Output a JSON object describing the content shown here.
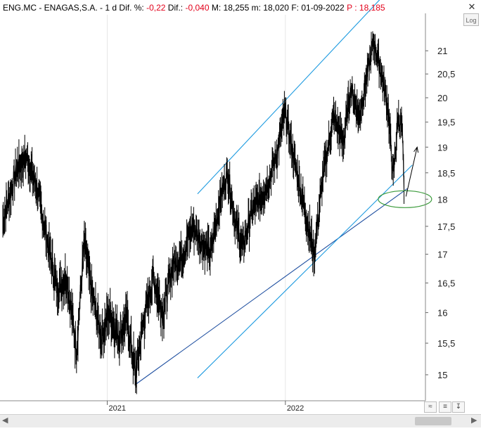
{
  "header": {
    "ticker": "ENG.MC - ENAGAS,S.A. -",
    "period": "1 d",
    "dif_pct_label": "Dif. %:",
    "dif_pct_value": "-0,22",
    "dif_label": "Dif.:",
    "dif_value": "-0,040",
    "max_label": "M:",
    "max_value": "18,255",
    "min_label": "m:",
    "min_value": "18,020",
    "date_label": "F:",
    "date_value": "01-09-2022",
    "price_label": "P :",
    "price_value": "18,185",
    "close_icon": "close-icon"
  },
  "controls": {
    "log_label": "Log",
    "scroll_left": "◀",
    "scroll_right": "▶",
    "btn_zoom_icon": "zigzag-icon",
    "btn_a": "≡",
    "btn_b": "↧"
  },
  "colors": {
    "price": "#000000",
    "trendline": "#1e9be0",
    "trendline_dark": "#1f4fa0",
    "ellipse": "#3a9a3a",
    "arrow": "#000000",
    "grid": "#e6e6e6",
    "negative": "#e2001a"
  },
  "chart_data": {
    "type": "line",
    "style": "bar-ohlc",
    "title": "",
    "xlabel": "",
    "ylabel": "",
    "x_tick_labels": [
      "2021",
      "2022"
    ],
    "y_ticks": [
      15,
      15.5,
      16,
      16.5,
      17,
      17.5,
      18,
      18.5,
      19,
      19.5,
      20,
      20.5,
      21
    ],
    "y_tick_labels": [
      "15",
      "15,5",
      "16",
      "16,5",
      "17",
      "17,5",
      "18",
      "18,5",
      "19",
      "19,5",
      "20",
      "20,5",
      "21"
    ],
    "ylim": [
      14.6,
      21.8
    ],
    "x_range": [
      "2020-06-01",
      "2022-10-15"
    ],
    "scale": "log",
    "grid": true,
    "series": [
      {
        "values_monthly": [
          [
            "2020-06-01",
            17.6
          ],
          [
            "2020-07-01",
            18.6
          ],
          [
            "2020-07-20",
            18.8
          ],
          [
            "2020-08-10",
            18.2
          ],
          [
            "2020-09-01",
            17.2
          ],
          [
            "2020-09-20",
            16.4
          ],
          [
            "2020-10-10",
            16.6
          ],
          [
            "2020-10-30",
            15.4
          ],
          [
            "2020-11-15",
            17.2
          ],
          [
            "2020-12-01",
            16.3
          ],
          [
            "2020-12-20",
            15.6
          ],
          [
            "2021-01-05",
            16.0
          ],
          [
            "2021-01-25",
            15.6
          ],
          [
            "2021-02-10",
            15.9
          ],
          [
            "2021-02-28",
            15.0
          ],
          [
            "2021-03-15",
            15.8
          ],
          [
            "2021-04-05",
            16.6
          ],
          [
            "2021-04-25",
            16.0
          ],
          [
            "2021-05-15",
            16.8
          ],
          [
            "2021-06-05",
            17.0
          ],
          [
            "2021-06-25",
            17.5
          ],
          [
            "2021-07-15",
            17.2
          ],
          [
            "2021-08-01",
            17.0
          ],
          [
            "2021-08-20",
            18.0
          ],
          [
            "2021-09-05",
            18.5
          ],
          [
            "2021-09-20",
            17.6
          ],
          [
            "2021-10-05",
            17.1
          ],
          [
            "2021-10-25",
            17.8
          ],
          [
            "2021-11-10",
            18.0
          ],
          [
            "2021-11-30",
            18.4
          ],
          [
            "2021-12-15",
            18.9
          ],
          [
            "2021-12-31",
            19.7
          ],
          [
            "2022-01-20",
            18.7
          ],
          [
            "2022-02-10",
            17.8
          ],
          [
            "2022-03-01",
            17.0
          ],
          [
            "2022-03-20",
            18.5
          ],
          [
            "2022-04-10",
            19.6
          ],
          [
            "2022-04-30",
            19.1
          ],
          [
            "2022-05-15",
            20.2
          ],
          [
            "2022-06-01",
            19.6
          ],
          [
            "2022-06-20",
            20.6
          ],
          [
            "2022-07-01",
            21.2
          ],
          [
            "2022-07-15",
            20.6
          ],
          [
            "2022-07-30",
            19.8
          ],
          [
            "2022-08-10",
            18.4
          ],
          [
            "2022-08-20",
            19.6
          ],
          [
            "2022-08-28",
            19.4
          ],
          [
            "2022-09-01",
            18.18
          ]
        ]
      }
    ]
  }
}
